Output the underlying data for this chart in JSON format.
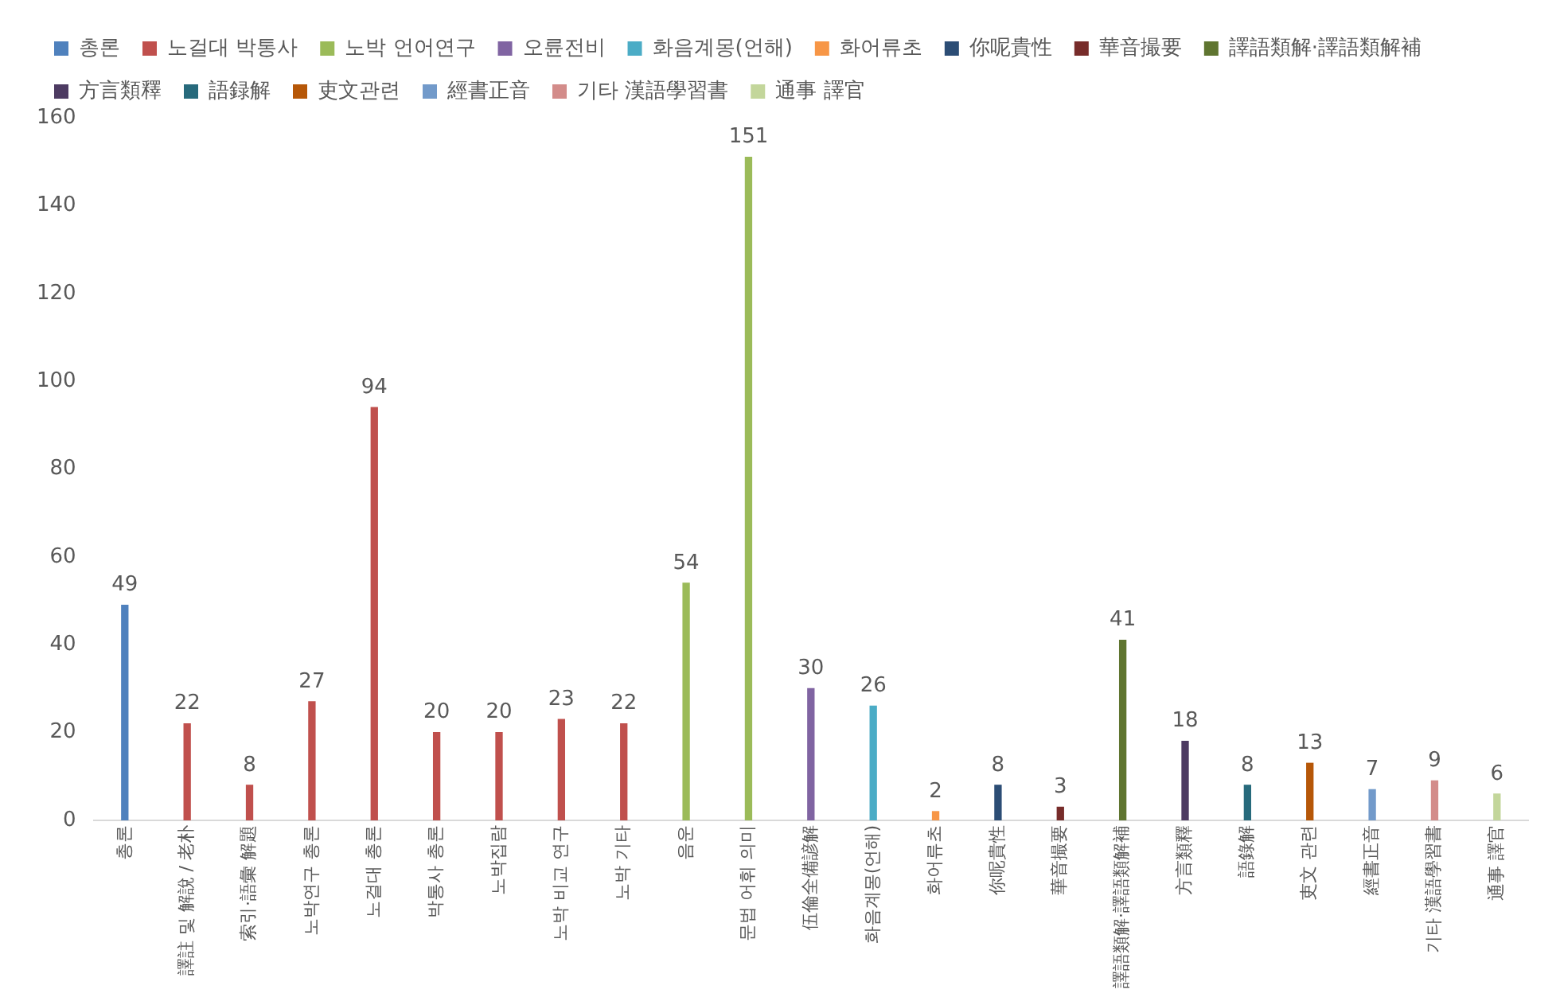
{
  "chart_data": {
    "type": "bar",
    "categories": [
      "총론",
      "譯註 및 解說 / 老朴",
      "索引·語彙 解題",
      "노박연구 총론",
      "노걸대 총론",
      "박통사 총론",
      "노박집람",
      "노박 비교 연구",
      "노박 기타",
      "음운",
      "문법 어휘 의미",
      "伍倫全備諺解",
      "화음계몽(언해)",
      "화어류초",
      "你呢貴性",
      "華音撮要",
      "譯語類解·譯語類解補",
      "方言類釋",
      "語錄解",
      "吏文 관련",
      "經書正音",
      "기타 漢語學習書",
      "通事 譯官"
    ],
    "series": [
      {
        "name": "총론",
        "color": "#4f81bd",
        "values": [
          49,
          null,
          null,
          null,
          null,
          null,
          null,
          null,
          null,
          null,
          null,
          null,
          null,
          null,
          null,
          null,
          null,
          null,
          null,
          null,
          null,
          null,
          null
        ]
      },
      {
        "name": "노걸대 박통사",
        "color": "#c0504d",
        "values": [
          null,
          22,
          8,
          27,
          94,
          20,
          20,
          23,
          22,
          null,
          null,
          null,
          null,
          null,
          null,
          null,
          null,
          null,
          null,
          null,
          null,
          null,
          null
        ]
      },
      {
        "name": "노박 언어연구",
        "color": "#9bbb59",
        "values": [
          null,
          null,
          null,
          null,
          null,
          null,
          null,
          null,
          null,
          54,
          151,
          null,
          null,
          null,
          null,
          null,
          null,
          null,
          null,
          null,
          null,
          null,
          null
        ]
      },
      {
        "name": "오륜전비",
        "color": "#8064a2",
        "values": [
          null,
          null,
          null,
          null,
          null,
          null,
          null,
          null,
          null,
          null,
          null,
          30,
          null,
          null,
          null,
          null,
          null,
          null,
          null,
          null,
          null,
          null,
          null
        ]
      },
      {
        "name": "화음계몽(언해)",
        "color": "#4bacc6",
        "values": [
          null,
          null,
          null,
          null,
          null,
          null,
          null,
          null,
          null,
          null,
          null,
          null,
          26,
          null,
          null,
          null,
          null,
          null,
          null,
          null,
          null,
          null,
          null
        ]
      },
      {
        "name": "화어류초",
        "color": "#f79646",
        "values": [
          null,
          null,
          null,
          null,
          null,
          null,
          null,
          null,
          null,
          null,
          null,
          null,
          null,
          2,
          null,
          null,
          null,
          null,
          null,
          null,
          null,
          null,
          null
        ]
      },
      {
        "name": "你呢貴性",
        "color": "#2c4d75",
        "values": [
          null,
          null,
          null,
          null,
          null,
          null,
          null,
          null,
          null,
          null,
          null,
          null,
          null,
          null,
          8,
          null,
          null,
          null,
          null,
          null,
          null,
          null,
          null
        ]
      },
      {
        "name": "華音撮要",
        "color": "#772c2a",
        "values": [
          null,
          null,
          null,
          null,
          null,
          null,
          null,
          null,
          null,
          null,
          null,
          null,
          null,
          null,
          null,
          3,
          null,
          null,
          null,
          null,
          null,
          null,
          null
        ]
      },
      {
        "name": "譯語類解·譯語類解補",
        "color": "#5f7530",
        "values": [
          null,
          null,
          null,
          null,
          null,
          null,
          null,
          null,
          null,
          null,
          null,
          null,
          null,
          null,
          null,
          null,
          41,
          null,
          null,
          null,
          null,
          null,
          null
        ]
      },
      {
        "name": "方言類釋",
        "color": "#4d3b62",
        "values": [
          null,
          null,
          null,
          null,
          null,
          null,
          null,
          null,
          null,
          null,
          null,
          null,
          null,
          null,
          null,
          null,
          null,
          18,
          null,
          null,
          null,
          null,
          null
        ]
      },
      {
        "name": "語録解",
        "color": "#276a7c",
        "values": [
          null,
          null,
          null,
          null,
          null,
          null,
          null,
          null,
          null,
          null,
          null,
          null,
          null,
          null,
          null,
          null,
          null,
          null,
          8,
          null,
          null,
          null,
          null
        ]
      },
      {
        "name": "吏文관련",
        "color": "#b65708",
        "values": [
          null,
          null,
          null,
          null,
          null,
          null,
          null,
          null,
          null,
          null,
          null,
          null,
          null,
          null,
          null,
          null,
          null,
          null,
          null,
          13,
          null,
          null,
          null
        ]
      },
      {
        "name": "經書正音",
        "color": "#729aca",
        "values": [
          null,
          null,
          null,
          null,
          null,
          null,
          null,
          null,
          null,
          null,
          null,
          null,
          null,
          null,
          null,
          null,
          null,
          null,
          null,
          null,
          7,
          null,
          null
        ]
      },
      {
        "name": "기타 漢語學習書",
        "color": "#d38c8a",
        "values": [
          null,
          null,
          null,
          null,
          null,
          null,
          null,
          null,
          null,
          null,
          null,
          null,
          null,
          null,
          null,
          null,
          null,
          null,
          null,
          null,
          null,
          9,
          null
        ]
      },
      {
        "name": "通事 譯官",
        "color": "#c3d69b",
        "values": [
          null,
          null,
          null,
          null,
          null,
          null,
          null,
          null,
          null,
          null,
          null,
          null,
          null,
          null,
          null,
          null,
          null,
          null,
          null,
          null,
          null,
          null,
          6
        ]
      }
    ],
    "ylim": [
      0,
      160
    ],
    "yticks": [
      0,
      20,
      40,
      60,
      80,
      100,
      120,
      140,
      160
    ],
    "grid": false,
    "legend": "top",
    "data_labels": true
  }
}
